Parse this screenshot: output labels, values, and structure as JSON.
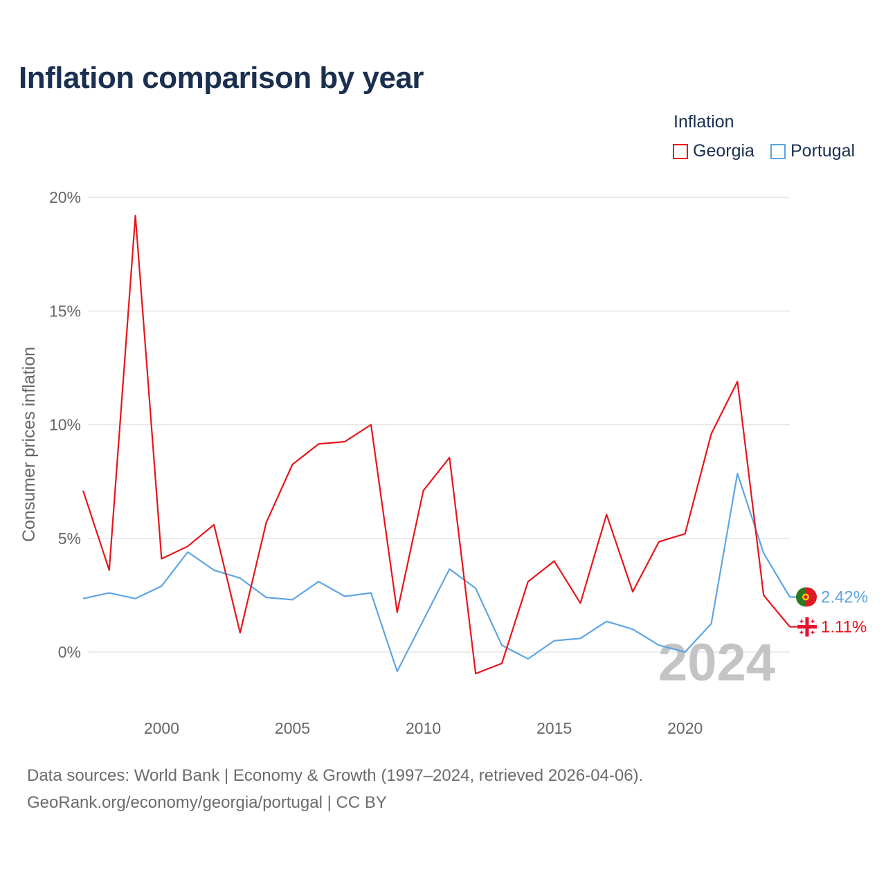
{
  "title": "Inflation comparison by year",
  "legend": {
    "title": "Inflation",
    "items": [
      {
        "label": "Georgia",
        "color": "#e8141b"
      },
      {
        "label": "Portugal",
        "color": "#5da5e4"
      }
    ]
  },
  "source": {
    "line1": "Data sources: World Bank | Economy & Growth (1997–2024, retrieved 2026-04-06).",
    "line2": "GeoRank.org/economy/georgia/portugal | CC BY"
  },
  "chart_data": {
    "type": "line",
    "title": "Inflation comparison by year",
    "xlabel": "",
    "ylabel": "Consumer prices inflation",
    "x": [
      1997,
      1998,
      1999,
      2000,
      2001,
      2002,
      2003,
      2004,
      2005,
      2006,
      2007,
      2008,
      2009,
      2010,
      2011,
      2012,
      2013,
      2014,
      2015,
      2016,
      2017,
      2018,
      2019,
      2020,
      2021,
      2022,
      2023,
      2024
    ],
    "xlim": [
      1997,
      2024
    ],
    "ylim": [
      -2.6,
      20
    ],
    "x_ticks": [
      2000,
      2005,
      2010,
      2015,
      2020
    ],
    "x_tick_labels": [
      "2000",
      "2005",
      "2010",
      "2015",
      "2020"
    ],
    "y_ticks": [
      0,
      5,
      10,
      15,
      20
    ],
    "y_tick_labels": [
      "0%",
      "5%",
      "10%",
      "15%",
      "20%"
    ],
    "grid": true,
    "legend_position": "top-right",
    "watermark": "2024",
    "series": [
      {
        "name": "Georgia",
        "color": "#e8141b",
        "end_label": "1.11%",
        "values": [
          7.1,
          3.6,
          19.2,
          4.1,
          4.65,
          5.6,
          0.85,
          5.7,
          8.25,
          9.15,
          9.25,
          10.0,
          1.75,
          7.1,
          8.55,
          -0.95,
          -0.5,
          3.1,
          4.0,
          2.15,
          6.05,
          2.65,
          4.85,
          5.2,
          9.6,
          11.9,
          2.5,
          1.11
        ]
      },
      {
        "name": "Portugal",
        "color": "#5da5e4",
        "end_label": "2.42%",
        "values": [
          2.35,
          2.6,
          2.35,
          2.9,
          4.4,
          3.6,
          3.25,
          2.4,
          2.3,
          3.1,
          2.45,
          2.6,
          -0.85,
          1.4,
          3.65,
          2.8,
          0.3,
          -0.3,
          0.5,
          0.6,
          1.35,
          1.0,
          0.3,
          0.0,
          1.25,
          7.85,
          4.35,
          2.42
        ]
      }
    ]
  }
}
